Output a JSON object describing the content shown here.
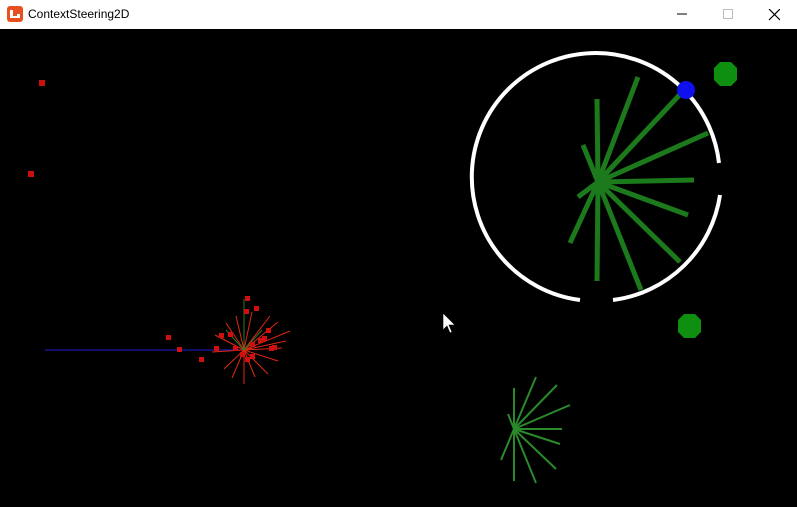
{
  "window": {
    "title": "ContextSteering2D",
    "icon": "monogame-icon",
    "controls": [
      "minimize-icon",
      "maximize-icon",
      "close-icon"
    ]
  },
  "scene": {
    "background": "#000000",
    "colors": {
      "agent_rays": "#1e7a1e",
      "small_rays": "#2f8f2f",
      "danger": "#d01010",
      "danger_rays": "#e03010",
      "target": "#0f8f0f",
      "seek_target": "#1010ff",
      "path_line": "#1a1aaa",
      "ring": "#ffffff"
    }
  }
}
